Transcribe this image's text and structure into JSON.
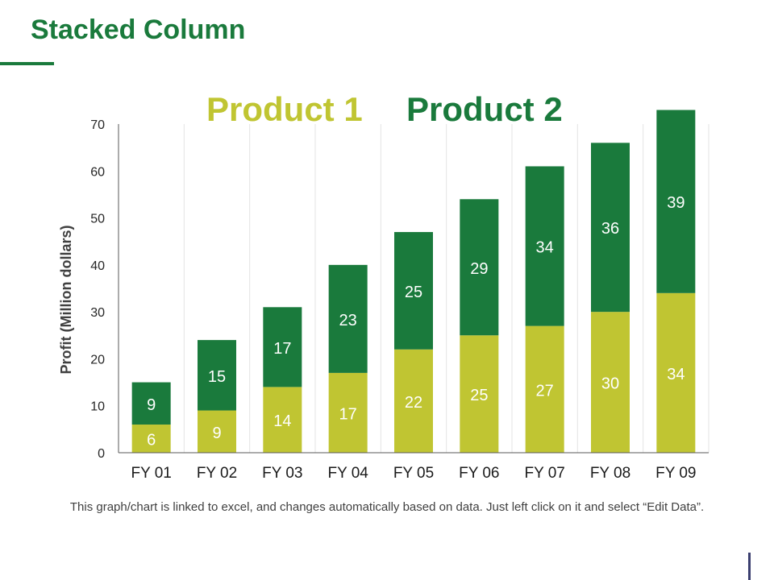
{
  "slide": {
    "title": "Stacked Column",
    "caption": "This graph/chart is linked to excel, and changes automatically based on data. Just left click on it and select “Edit Data”."
  },
  "chart_data": {
    "type": "bar",
    "stacked": true,
    "title": "",
    "xlabel": "",
    "ylabel": "Profit  (Million dollars)",
    "ylim": [
      0,
      70
    ],
    "yticks": [
      0,
      10,
      20,
      30,
      40,
      50,
      60,
      70
    ],
    "categories": [
      "FY 01",
      "FY 02",
      "FY 03",
      "FY 04",
      "FY 05",
      "FY 06",
      "FY 07",
      "FY 08",
      "FY 09"
    ],
    "series": [
      {
        "name": "Product 1",
        "color": "#c0c532",
        "values": [
          6,
          9,
          14,
          17,
          22,
          25,
          27,
          30,
          34
        ]
      },
      {
        "name": "Product 2",
        "color": "#1a7a3c",
        "values": [
          9,
          15,
          17,
          23,
          25,
          29,
          34,
          36,
          39
        ]
      }
    ],
    "legend_position": "top-center",
    "grid": "vertical"
  }
}
